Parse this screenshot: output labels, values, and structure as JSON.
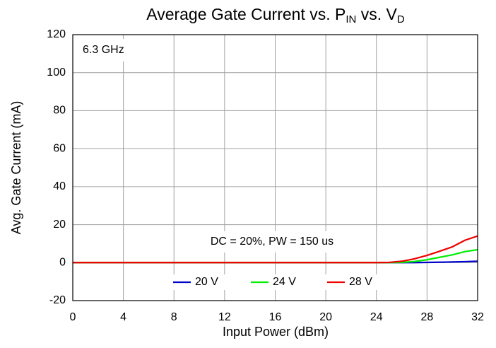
{
  "chart_data": {
    "type": "line",
    "title": [
      "Average Gate Current vs. P",
      "IN",
      " vs. V",
      "D"
    ],
    "xlabel": "Input Power (dBm)",
    "ylabel": "Avg. Gate Current (mA)",
    "annotations": [
      "6.3 GHz",
      "DC = 20%, PW = 150 us"
    ],
    "x": [
      0,
      1,
      2,
      3,
      4,
      5,
      6,
      7,
      8,
      9,
      10,
      11,
      12,
      13,
      14,
      15,
      16,
      17,
      18,
      19,
      20,
      21,
      22,
      23,
      24,
      25,
      26,
      27,
      28,
      29,
      30,
      31,
      32
    ],
    "series": [
      {
        "name": "20 V",
        "color": "#0000cc",
        "values": [
          0,
          0,
          0,
          0,
          0,
          0,
          0,
          0,
          0,
          0,
          0,
          0,
          0,
          0,
          0,
          0,
          0,
          0,
          0,
          0,
          0,
          0,
          0,
          0,
          0,
          0,
          0,
          0,
          0.1,
          0.2,
          0.35,
          0.5,
          0.7
        ]
      },
      {
        "name": "24 V",
        "color": "#00ee00",
        "values": [
          0,
          0,
          0,
          0,
          0,
          0,
          0,
          0,
          0,
          0,
          0,
          0,
          0,
          0,
          0,
          0,
          0,
          0,
          0,
          0,
          0,
          0,
          0,
          0,
          0,
          0,
          0.1,
          0.6,
          1.5,
          2.8,
          4.1,
          5.8,
          6.8
        ]
      },
      {
        "name": "28 V",
        "color": "#ee0000",
        "values": [
          0,
          0,
          0,
          0,
          0,
          0,
          0,
          0,
          0,
          0,
          0,
          0,
          0,
          0,
          0,
          0,
          0,
          0,
          0,
          0,
          0,
          0,
          0,
          0,
          0,
          0.1,
          0.7,
          2,
          3.8,
          6,
          8.3,
          11.8,
          14
        ]
      }
    ],
    "xlim": [
      0,
      32
    ],
    "xticks": [
      0,
      4,
      8,
      12,
      16,
      20,
      24,
      28,
      32
    ],
    "ylim": [
      -20,
      120
    ],
    "yticks": [
      -20,
      0,
      20,
      40,
      60,
      80,
      100,
      120
    ],
    "grid": true,
    "legend": "bottom"
  }
}
